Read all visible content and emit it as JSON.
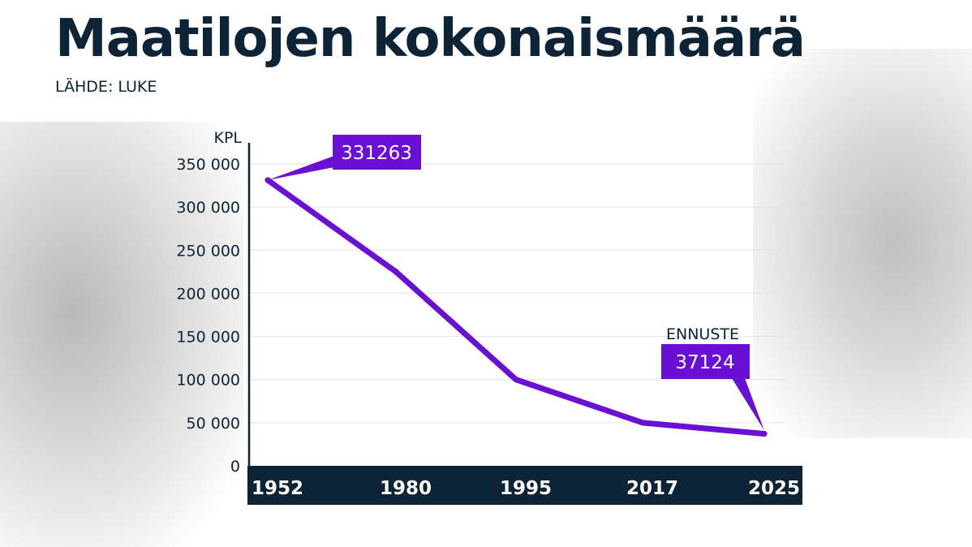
{
  "title": "Maatilojen kokonaismäärä",
  "source": "LÄHDE: LUKE",
  "colors": {
    "line": "#6a0fd4",
    "text": "#0d2336",
    "axis_bar": "#0d2336"
  },
  "chart_data": {
    "type": "line",
    "title": "Maatilojen kokonaismäärä",
    "ylabel": "KPL",
    "categories": [
      "1952",
      "1980",
      "1995",
      "2017",
      "2025"
    ],
    "values": [
      331263,
      225000,
      100000,
      50000,
      37124
    ],
    "ylim": [
      0,
      350000
    ],
    "yticks": [
      0,
      50000,
      100000,
      150000,
      200000,
      250000,
      300000,
      350000
    ],
    "ytick_labels": [
      "0",
      "50 000",
      "100 000",
      "150 000",
      "200 000",
      "250 000",
      "300 000",
      "350 000"
    ],
    "grid": true,
    "callouts": [
      {
        "label": "331263",
        "point_index": 0
      },
      {
        "label": "37124",
        "point_index": 4,
        "note": "ENNUSTE"
      }
    ]
  }
}
